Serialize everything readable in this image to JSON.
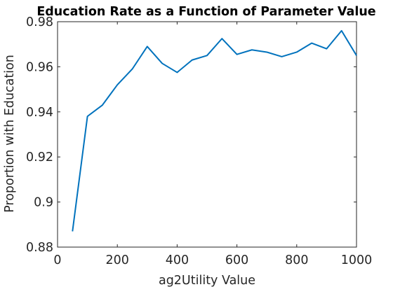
{
  "chart_data": {
    "type": "line",
    "title": "Education Rate as a Function of Parameter Value",
    "xlabel": "ag2Utility Value",
    "ylabel": "Proportion with Education",
    "xlim": [
      0,
      1000
    ],
    "ylim": [
      0.88,
      0.98
    ],
    "xticks": [
      "0",
      "200",
      "400",
      "600",
      "800",
      "1000"
    ],
    "yticks": [
      "0.88",
      "0.9",
      "0.92",
      "0.94",
      "0.96",
      "0.98"
    ],
    "grid": false,
    "series": [
      {
        "color": "#0072bd",
        "x": [
          50,
          100,
          150,
          200,
          250,
          300,
          350,
          400,
          450,
          500,
          550,
          600,
          650,
          700,
          750,
          800,
          850,
          900,
          950,
          1000
        ],
        "y": [
          0.887,
          0.938,
          0.943,
          0.952,
          0.959,
          0.969,
          0.9615,
          0.9575,
          0.963,
          0.965,
          0.9725,
          0.9655,
          0.9675,
          0.9665,
          0.9645,
          0.9665,
          0.9705,
          0.968,
          0.976,
          0.965
        ]
      }
    ]
  }
}
